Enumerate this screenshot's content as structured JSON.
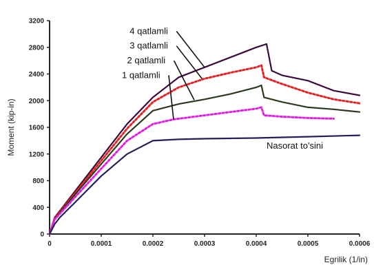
{
  "chart_data": {
    "type": "line",
    "title": "",
    "xlabel": "Egrilik (1/in)",
    "ylabel": "Moment (kip-in)",
    "xlim": [
      0,
      0.0006
    ],
    "ylim": [
      0,
      3200
    ],
    "xticks": [
      "0",
      "0.0001",
      "0.0002",
      "0.0003",
      "0.0004",
      "0.0005",
      "0.0006"
    ],
    "yticks": [
      "0",
      "400",
      "800",
      "1200",
      "1600",
      "2000",
      "2400",
      "2800",
      "3200"
    ],
    "grid": false,
    "legend": "none",
    "series": [
      {
        "name": "4 qatlamli",
        "color": "#3a0a3a",
        "style": "solid",
        "x": [
          0,
          1e-05,
          5e-05,
          0.0001,
          0.00015,
          0.0002,
          0.00025,
          0.0003,
          0.00035,
          0.0004,
          0.00042,
          0.00043,
          0.00045,
          0.0005,
          0.00055,
          0.0006
        ],
        "y": [
          0,
          250,
          650,
          1150,
          1650,
          2050,
          2350,
          2500,
          2650,
          2800,
          2850,
          2450,
          2380,
          2300,
          2150,
          2080
        ]
      },
      {
        "name": "3 qatlamli",
        "color": "#e32222",
        "style": "dotted",
        "x": [
          0,
          1e-05,
          5e-05,
          0.0001,
          0.00015,
          0.0002,
          0.00025,
          0.0003,
          0.00035,
          0.0004,
          0.00041,
          0.000415,
          0.00045,
          0.0005,
          0.00055,
          0.0006
        ],
        "y": [
          0,
          240,
          620,
          1100,
          1580,
          1980,
          2200,
          2330,
          2420,
          2500,
          2530,
          2350,
          2250,
          2120,
          2020,
          1960
        ]
      },
      {
        "name": "2 qatlamli",
        "color": "#2b3a1a",
        "style": "solid",
        "x": [
          0,
          1e-05,
          5e-05,
          0.0001,
          0.00015,
          0.0002,
          0.00025,
          0.0003,
          0.00035,
          0.0004,
          0.00041,
          0.000415,
          0.00045,
          0.0005,
          0.00055,
          0.0006
        ],
        "y": [
          0,
          230,
          600,
          1050,
          1500,
          1850,
          1950,
          2020,
          2100,
          2200,
          2230,
          2050,
          1980,
          1900,
          1870,
          1830
        ]
      },
      {
        "name": "1 qatlamli",
        "color": "#e020e0",
        "style": "dotted",
        "x": [
          0,
          1e-05,
          5e-05,
          0.0001,
          0.00015,
          0.0002,
          0.00024,
          0.0003,
          0.00035,
          0.0004,
          0.00041,
          0.000415,
          0.00045,
          0.0005,
          0.00055
        ],
        "y": [
          0,
          220,
          560,
          980,
          1400,
          1650,
          1720,
          1780,
          1830,
          1880,
          1900,
          1780,
          1760,
          1740,
          1730
        ]
      },
      {
        "name": "Nasorat to'sini",
        "color": "#22205a",
        "style": "solid",
        "x": [
          0,
          1e-05,
          2e-05,
          5e-05,
          0.0001,
          0.00015,
          0.0002,
          0.00025,
          0.0003,
          0.0004,
          0.0005,
          0.0006
        ],
        "y": [
          0,
          150,
          250,
          480,
          870,
          1200,
          1400,
          1420,
          1430,
          1440,
          1460,
          1480
        ]
      }
    ],
    "annotations": [
      {
        "text": "4 qatlamli",
        "series": "4 qatlamli",
        "label_x": 0.000155,
        "label_y": 3000,
        "arrow_x": 0.0003,
        "arrow_y": 2500
      },
      {
        "text": "3 qatlamli",
        "series": "3 qatlamli",
        "label_x": 0.000155,
        "label_y": 2780,
        "arrow_x": 0.000295,
        "arrow_y": 2330
      },
      {
        "text": "2 qatlamli",
        "series": "2 qatlamli",
        "label_x": 0.00015,
        "label_y": 2560,
        "arrow_x": 0.00028,
        "arrow_y": 2010
      },
      {
        "text": "1 qatlamli",
        "series": "1 qatlamli",
        "label_x": 0.00014,
        "label_y": 2340,
        "arrow_x": 0.00024,
        "arrow_y": 1720
      },
      {
        "text": "Nasorat to'sini",
        "series": "Nasorat to'sini",
        "label_x": 0.00042,
        "label_y": 1280
      }
    ]
  }
}
